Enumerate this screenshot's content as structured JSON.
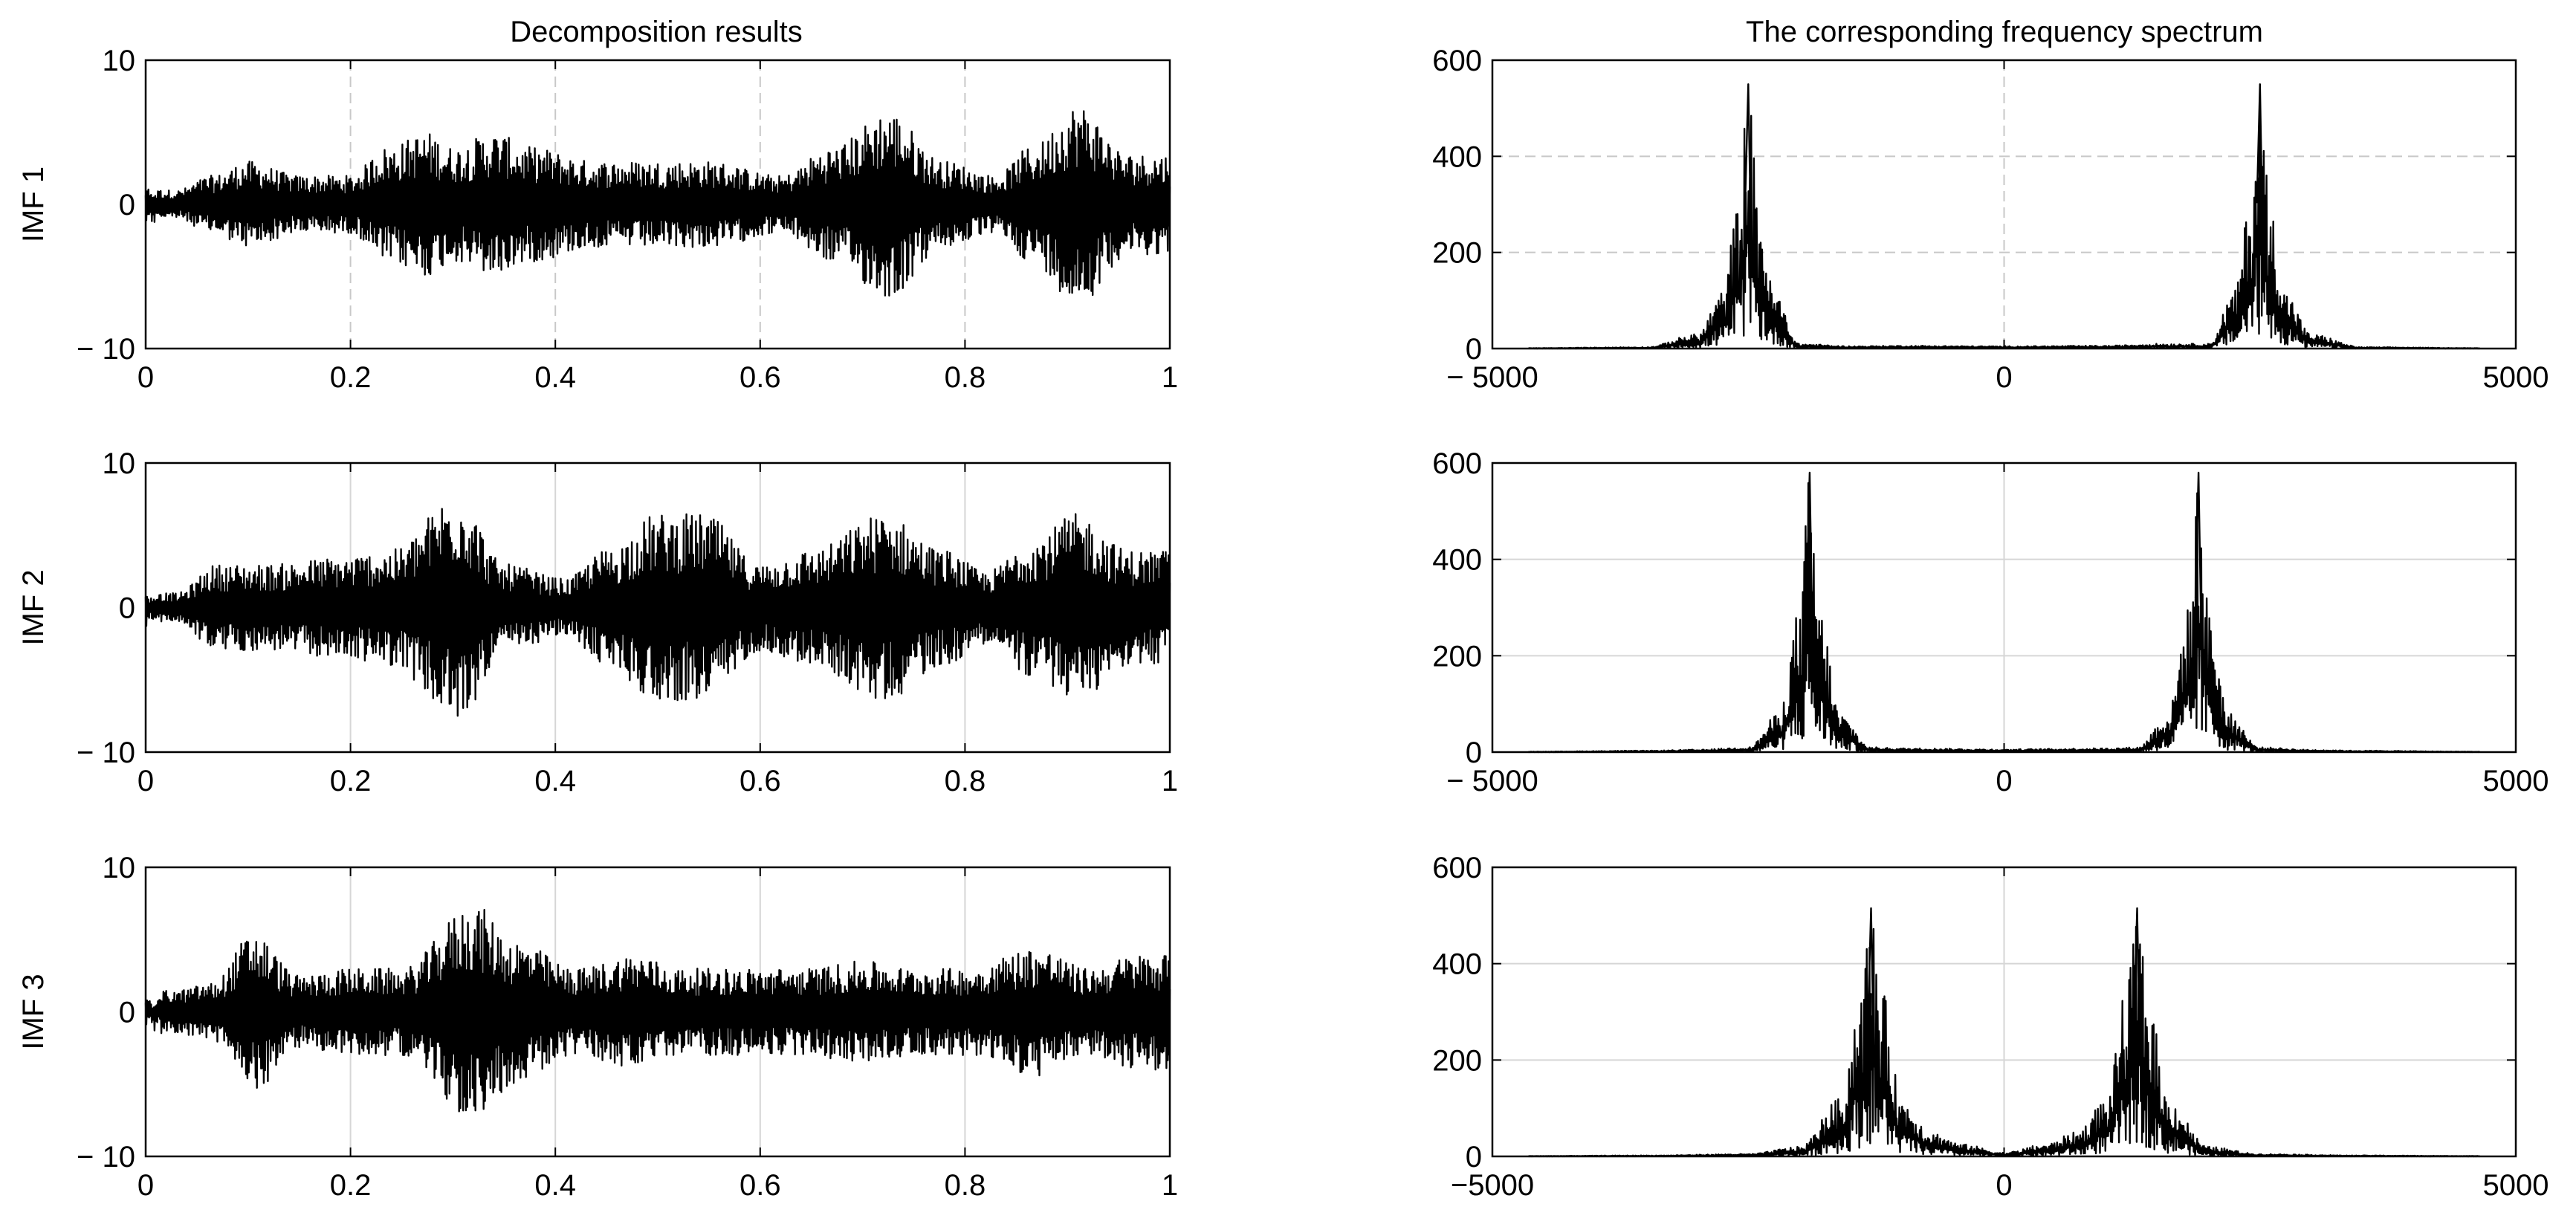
{
  "figure": {
    "left_title": "Decomposition results",
    "right_title": "The corresponding frequency spectrum"
  },
  "chart_data": [
    {
      "type": "line",
      "panel": "time",
      "row": 0,
      "ylabel": "IMF 1",
      "xlim": [
        0,
        1
      ],
      "ylim": [
        -10,
        10
      ],
      "xticks": [
        0,
        0.2,
        0.4,
        0.6,
        0.8,
        1
      ],
      "xtick_labels": [
        "0",
        "0.2",
        "0.4",
        "0.6",
        "0.8",
        "1"
      ],
      "yticks": [
        -10,
        0,
        10
      ],
      "ytick_labels": [
        "− 10",
        "0",
        "10"
      ],
      "grid": "dashed vertical",
      "series": [
        {
          "x": [
            0.03,
            0.065,
            0.1,
            0.15,
            0.2,
            0.235,
            0.275,
            0.3,
            0.34,
            0.375,
            0.44,
            0.5,
            0.55,
            0.62,
            0.67,
            0.725,
            0.78,
            0.83,
            0.865,
            0.91,
            0.96
          ],
          "y": [
            1,
            2,
            3,
            2,
            2,
            4,
            5,
            4,
            5,
            4,
            3,
            3,
            3,
            2,
            4,
            6.5,
            3,
            2,
            4,
            7,
            3.5
          ]
        }
      ]
    },
    {
      "type": "line",
      "panel": "time",
      "row": 1,
      "ylabel": "IMF 2",
      "xlim": [
        0,
        1
      ],
      "ylim": [
        -10,
        10
      ],
      "xticks": [
        0,
        0.2,
        0.4,
        0.6,
        0.8,
        1
      ],
      "xtick_labels": [
        "0",
        "0.2",
        "0.4",
        "0.6",
        "0.8",
        "1"
      ],
      "yticks": [
        -10,
        0,
        10
      ],
      "ytick_labels": [
        "− 10",
        "0",
        "10"
      ],
      "grid": "vertical",
      "series": [
        {
          "x": [
            0.03,
            0.07,
            0.12,
            0.19,
            0.24,
            0.305,
            0.35,
            0.41,
            0.45,
            0.5,
            0.545,
            0.6,
            0.65,
            0.72,
            0.78,
            0.82,
            0.87,
            0.91,
            0.96
          ],
          "y": [
            1,
            3,
            3,
            3.5,
            4,
            8,
            3,
            2,
            4,
            6.5,
            6.5,
            3,
            4,
            6.5,
            4,
            2.5,
            5,
            6.5,
            4
          ]
        }
      ]
    },
    {
      "type": "line",
      "panel": "time",
      "row": 2,
      "ylabel": "IMF 3",
      "xlim": [
        0,
        1
      ],
      "ylim": [
        -10,
        10
      ],
      "xticks": [
        0,
        0.2,
        0.4,
        0.6,
        0.8,
        1
      ],
      "xtick_labels": [
        "0",
        "0.2",
        "0.4",
        "0.6",
        "0.8",
        "1"
      ],
      "yticks": [
        -10,
        0,
        10
      ],
      "ytick_labels": [
        "− 10",
        "0",
        "10"
      ],
      "grid": "vertical",
      "series": [
        {
          "x": [
            0.03,
            0.065,
            0.105,
            0.15,
            0.2,
            0.25,
            0.32,
            0.36,
            0.42,
            0.48,
            0.52,
            0.58,
            0.64,
            0.7,
            0.75,
            0.8,
            0.87,
            0.92,
            0.97
          ],
          "y": [
            1.5,
            2,
            5.5,
            2.5,
            3,
            3,
            7.5,
            5,
            3,
            4,
            3,
            3,
            3,
            3.5,
            3,
            3,
            4.5,
            3,
            4
          ]
        }
      ]
    },
    {
      "type": "line",
      "panel": "spectrum",
      "row": 0,
      "xlim": [
        -5000,
        5000
      ],
      "ylim": [
        0,
        600
      ],
      "xticks": [
        -5000,
        0,
        5000
      ],
      "xtick_labels": [
        "− 5000",
        "0",
        "5000"
      ],
      "yticks": [
        0,
        200,
        400,
        600
      ],
      "ytick_labels": [
        "0",
        "200",
        "400",
        "600"
      ],
      "grid": "dashed",
      "series": [
        {
          "peaks": [
            -2500,
            2500
          ],
          "peak_height": 550,
          "x": [
            -4650,
            -3500,
            -3000,
            -2750,
            -2600,
            -2500,
            -2400,
            -2250,
            -2000,
            -1500,
            -1000,
            0,
            1000,
            1500,
            2000,
            2250,
            2400,
            2500,
            2600,
            2750,
            3000,
            3500,
            4650
          ],
          "y": [
            1,
            3,
            30,
            120,
            300,
            550,
            300,
            120,
            10,
            5,
            6,
            5,
            6,
            10,
            10,
            120,
            300,
            550,
            300,
            120,
            30,
            3,
            1
          ]
        }
      ]
    },
    {
      "type": "line",
      "panel": "spectrum",
      "row": 1,
      "xlim": [
        -5000,
        5000
      ],
      "ylim": [
        0,
        600
      ],
      "xticks": [
        -5000,
        0,
        5000
      ],
      "xtick_labels": [
        "− 5000",
        "0",
        "5000"
      ],
      "yticks": [
        0,
        200,
        400,
        600
      ],
      "ytick_labels": [
        "0",
        "200",
        "400",
        "600"
      ],
      "grid": "solid",
      "series": [
        {
          "peaks": [
            -1900,
            1900
          ],
          "peak_height": 580,
          "x": [
            -4650,
            -3500,
            -3000,
            -2500,
            -2200,
            -2000,
            -1900,
            -1800,
            -1600,
            -1300,
            -1000,
            0,
            1000,
            1300,
            1600,
            1800,
            1900,
            2000,
            2200,
            2500,
            3000,
            3500,
            4650
          ],
          "y": [
            1,
            3,
            5,
            10,
            80,
            300,
            580,
            300,
            80,
            10,
            8,
            6,
            8,
            10,
            80,
            300,
            580,
            300,
            80,
            10,
            5,
            3,
            1
          ]
        }
      ]
    },
    {
      "type": "line",
      "panel": "spectrum",
      "row": 2,
      "xlim": [
        -5000,
        5000
      ],
      "ylim": [
        0,
        600
      ],
      "xticks": [
        -5000,
        0,
        5000
      ],
      "xtick_labels": [
        "−5000",
        "0",
        "5000"
      ],
      "yticks": [
        0,
        200,
        400,
        600
      ],
      "ytick_labels": [
        "0",
        "200",
        "400",
        "600"
      ],
      "grid": "solid",
      "series": [
        {
          "peaks": [
            -1300,
            1300
          ],
          "peak_height": 515,
          "x": [
            -4650,
            -3500,
            -2500,
            -2000,
            -1600,
            -1400,
            -1300,
            -1200,
            -1000,
            -700,
            -400,
            0,
            400,
            700,
            1000,
            1200,
            1300,
            1400,
            1600,
            2000,
            2500,
            3500,
            4650
          ],
          "y": [
            1,
            2,
            5,
            20,
            120,
            350,
            515,
            350,
            120,
            50,
            25,
            8,
            25,
            50,
            120,
            350,
            515,
            350,
            120,
            20,
            5,
            2,
            1
          ]
        }
      ]
    }
  ]
}
